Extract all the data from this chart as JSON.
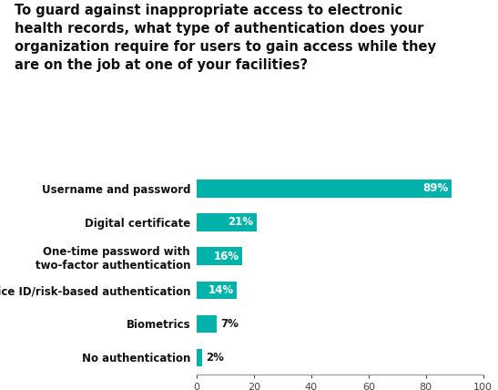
{
  "title": "To guard against inappropriate access to electronic\nhealth records, what type of authentication does your\norganization require for users to gain access while they\nare on the job at one of your facilities?",
  "categories": [
    "No authentication",
    "Biometrics",
    "Device ID/risk-based authentication",
    "One-time password with\ntwo-factor authentication",
    "Digital certificate",
    "Username and password"
  ],
  "values": [
    2,
    7,
    14,
    16,
    21,
    89
  ],
  "bar_color": "#00B2A9",
  "label_color_inside": "#ffffff",
  "label_color_outside": "#1a1a1a",
  "title_color": "#111111",
  "category_color": "#111111",
  "xlim": [
    0,
    100
  ],
  "xticks": [
    0,
    20,
    40,
    60,
    80,
    100
  ],
  "bar_height": 0.52,
  "figure_bg": "#ffffff",
  "axes_bg": "#ffffff",
  "title_fontsize": 10.5,
  "title_fontweight": "bold",
  "category_fontsize": 8.5,
  "category_fontweight": "bold",
  "value_fontsize": 8.5,
  "value_fontweight": "bold",
  "inside_threshold": 10
}
